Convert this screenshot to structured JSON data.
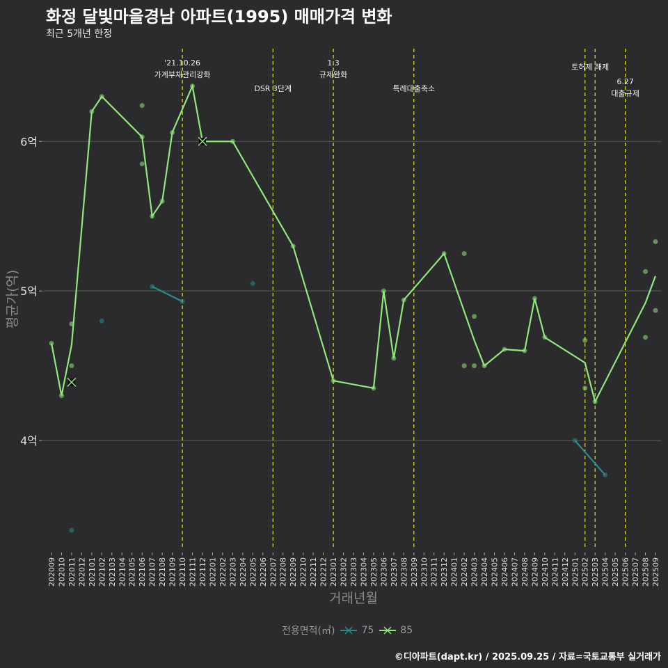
{
  "title": "화정 달빛마을경남 아파트(1995) 매매가격 변화",
  "subtitle": "최근 5개년 한정",
  "caption": "©디아파트(dapt.kr) / 2025.09.25 / 자료=국토교통부 실거래가",
  "colors": {
    "background": "#2b2a2c",
    "s75": "#2a8a8c",
    "s85": "#8ee87a",
    "vline": "#e6e62a",
    "grid": "#5a5a5a"
  },
  "chart_data": {
    "type": "line",
    "xlabel": "거래년월",
    "ylabel": "평균가(억)",
    "ylim": [
      3.27,
      6.62
    ],
    "yticks": [
      {
        "v": 4,
        "label": "4억"
      },
      {
        "v": 5,
        "label": "5억"
      },
      {
        "v": 6,
        "label": "6억"
      }
    ],
    "x": [
      "202009",
      "202010",
      "202011",
      "202012",
      "202101",
      "202102",
      "202103",
      "202104",
      "202105",
      "202106",
      "202107",
      "202108",
      "202109",
      "202110",
      "202111",
      "202112",
      "202201",
      "202202",
      "202203",
      "202204",
      "202205",
      "202206",
      "202207",
      "202208",
      "202209",
      "202210",
      "202211",
      "202212",
      "202301",
      "202302",
      "202303",
      "202304",
      "202305",
      "202306",
      "202307",
      "202308",
      "202309",
      "202310",
      "202311",
      "202312",
      "202401",
      "202402",
      "202403",
      "202404",
      "202405",
      "202406",
      "202407",
      "202408",
      "202409",
      "202410",
      "202411",
      "202412",
      "202501",
      "202502",
      "202503",
      "202504",
      "202505",
      "202506",
      "202507",
      "202508",
      "202509"
    ],
    "legend_title": "전용면적(㎡)",
    "series": [
      {
        "name": "75",
        "color": "#2a8a8c",
        "lines": [
          [
            [
              "202107",
              5.03
            ],
            [
              "202110",
              4.93
            ]
          ],
          [
            [
              "202501",
              4.0
            ],
            [
              "202504",
              3.77
            ]
          ]
        ],
        "points": [
          [
            "202011",
            3.4
          ],
          [
            "202102",
            4.8
          ],
          [
            "202107",
            5.03
          ],
          [
            "202110",
            4.93
          ],
          [
            "202205",
            5.05
          ],
          [
            "202501",
            4.0
          ],
          [
            "202504",
            3.77
          ]
        ],
        "x_markers": []
      },
      {
        "name": "85",
        "color": "#8ee87a",
        "lines": [
          [
            [
              "202009",
              4.65
            ],
            [
              "202010",
              4.3
            ],
            [
              "202011",
              4.64
            ],
            [
              "202101",
              6.2
            ],
            [
              "202102",
              6.3
            ],
            [
              "202106",
              6.03
            ],
            [
              "202107",
              5.5
            ],
            [
              "202108",
              5.6
            ],
            [
              "202109",
              6.06
            ],
            [
              "202111",
              6.37
            ],
            [
              "202112",
              6.0
            ],
            [
              "202203",
              6.0
            ],
            [
              "202209",
              5.3
            ],
            [
              "202301",
              4.4
            ],
            [
              "202305",
              4.35
            ],
            [
              "202306",
              5.0
            ],
            [
              "202307",
              4.55
            ],
            [
              "202308",
              4.94
            ],
            [
              "202312",
              5.25
            ],
            [
              "202403",
              4.67
            ],
            [
              "202404",
              4.5
            ],
            [
              "202406",
              4.61
            ],
            [
              "202408",
              4.6
            ],
            [
              "202409",
              4.95
            ],
            [
              "202410",
              4.69
            ],
            [
              "202502",
              4.52
            ],
            [
              "202503",
              4.26
            ],
            [
              "202508",
              4.92
            ],
            [
              "202509",
              5.1
            ]
          ]
        ],
        "points": [
          [
            "202009",
            4.65
          ],
          [
            "202010",
            4.3
          ],
          [
            "202011",
            4.78
          ],
          [
            "202011",
            4.5
          ],
          [
            "202101",
            6.2
          ],
          [
            "202102",
            6.3
          ],
          [
            "202106",
            6.24
          ],
          [
            "202106",
            6.03
          ],
          [
            "202106",
            5.85
          ],
          [
            "202107",
            5.5
          ],
          [
            "202108",
            5.6
          ],
          [
            "202109",
            6.06
          ],
          [
            "202111",
            6.37
          ],
          [
            "202203",
            6.0
          ],
          [
            "202209",
            5.3
          ],
          [
            "202301",
            4.4
          ],
          [
            "202305",
            4.35
          ],
          [
            "202306",
            5.0
          ],
          [
            "202307",
            4.55
          ],
          [
            "202308",
            4.94
          ],
          [
            "202312",
            5.25
          ],
          [
            "202402",
            5.25
          ],
          [
            "202402",
            4.5
          ],
          [
            "202403",
            4.83
          ],
          [
            "202403",
            4.5
          ],
          [
            "202404",
            4.5
          ],
          [
            "202406",
            4.61
          ],
          [
            "202408",
            4.6
          ],
          [
            "202409",
            4.95
          ],
          [
            "202410",
            4.69
          ],
          [
            "202502",
            4.67
          ],
          [
            "202502",
            4.35
          ],
          [
            "202503",
            4.26
          ],
          [
            "202508",
            5.13
          ],
          [
            "202508",
            4.69
          ],
          [
            "202509",
            5.33
          ],
          [
            "202509",
            4.87
          ]
        ],
        "x_markers": [
          [
            "202011",
            4.39
          ],
          [
            "202112",
            6.0
          ]
        ]
      }
    ],
    "events": [
      {
        "x": "202110",
        "lines": [
          "'21.10.26",
          "가계부채관리강화"
        ],
        "row": 0
      },
      {
        "x": "202207",
        "lines": [
          "DSR 3단계"
        ],
        "row": 2
      },
      {
        "x": "202301",
        "lines": [
          "1.3",
          "규제완화"
        ],
        "row": 0
      },
      {
        "x": "202309",
        "lines": [
          "특례대출축소"
        ],
        "row": 2
      },
      {
        "x": "202502",
        "lines": [],
        "row": 0
      },
      {
        "x": "202503",
        "lines": [
          "토허제 해제"
        ],
        "row": 1,
        "anchor_offset": -7
      },
      {
        "x": "202506",
        "lines": [
          "6.27",
          "대출규제"
        ],
        "row": 3
      }
    ]
  }
}
